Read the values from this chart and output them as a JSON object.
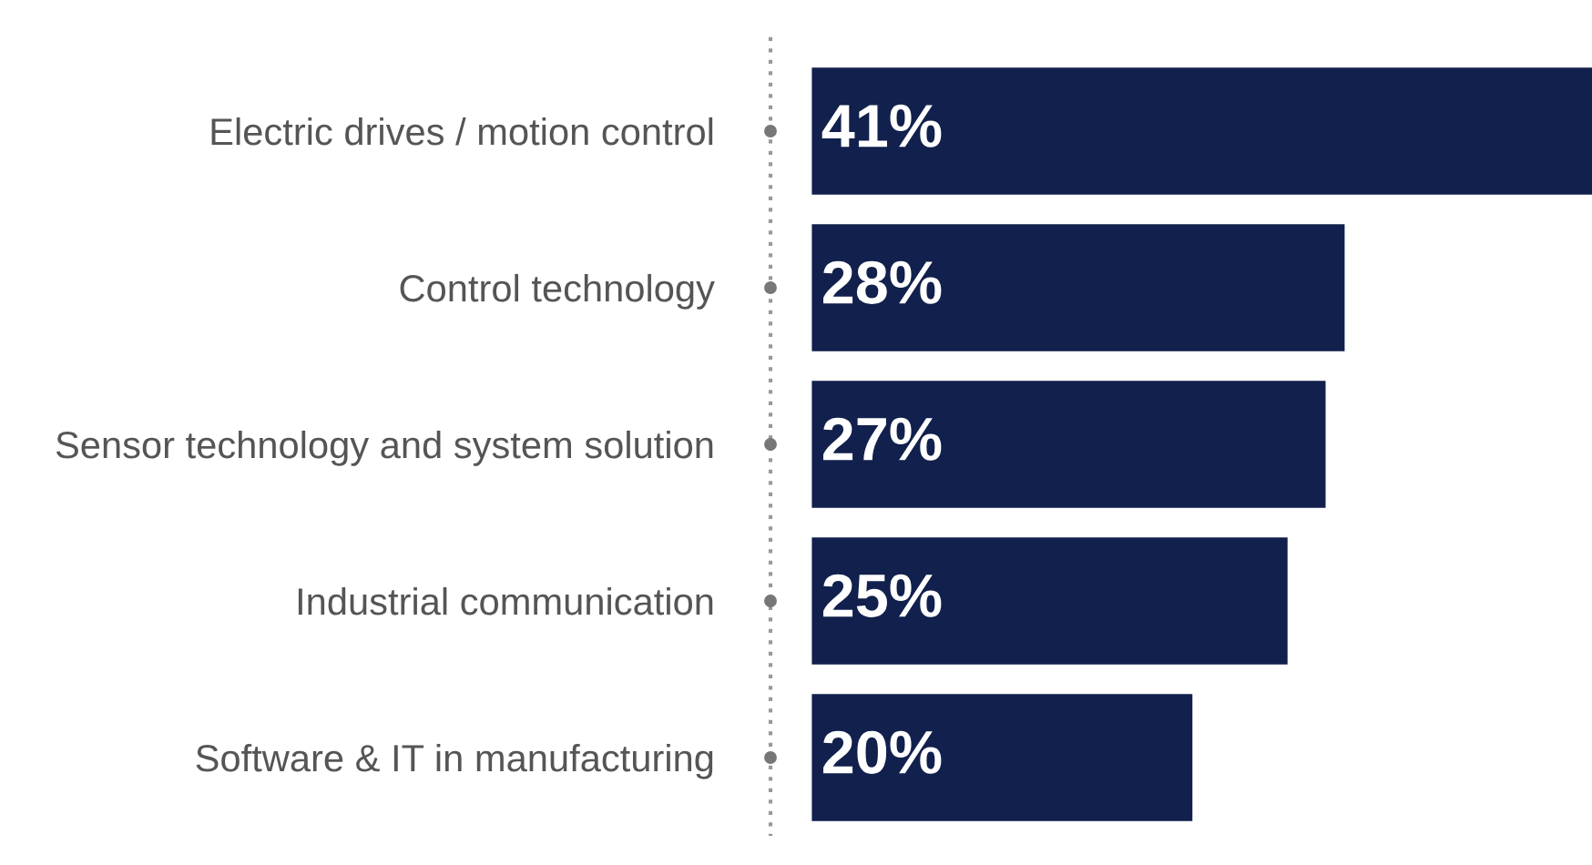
{
  "chart_data": {
    "type": "bar",
    "orientation": "horizontal",
    "categories": [
      "Electric drives / motion control",
      "Control technology",
      "Sensor technology and system solution",
      "Industrial communication",
      "Software & IT in manufacturing"
    ],
    "values": [
      41,
      28,
      27,
      25,
      20
    ],
    "value_labels": [
      "41%",
      "28%",
      "27%",
      "25%",
      "20%"
    ],
    "color": "#11204c",
    "grid": false,
    "legend": false
  }
}
